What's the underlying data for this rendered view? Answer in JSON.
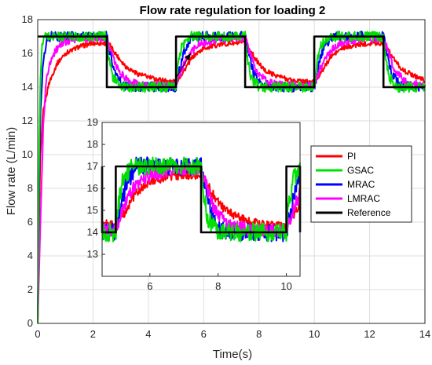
{
  "chart_data": {
    "type": "line",
    "title": "Flow rate regulation for loading 2",
    "xlabel": "Time(s)",
    "ylabel": "Flow rate (L/min)",
    "xlim": [
      0,
      14
    ],
    "ylim": [
      0,
      18
    ],
    "xticks": [
      "0",
      "2",
      "4",
      "6",
      "8",
      "10",
      "12",
      "14"
    ],
    "yticks": [
      "0",
      "2",
      "4",
      "6",
      "8",
      "10",
      "12",
      "14",
      "16",
      "18"
    ],
    "grid": true,
    "legend_position": "right, inside inset region",
    "series": [
      {
        "name": "PI",
        "color": "#ff0000",
        "x": [
          0,
          0.05,
          0.1,
          0.2,
          0.4,
          0.7,
          1.0,
          1.5,
          2.0,
          2.5,
          2.6,
          2.9,
          3.2,
          3.6,
          4.2,
          5.0,
          5.3,
          5.6,
          6.0,
          6.5,
          7.0,
          7.5,
          7.6,
          7.9,
          8.2,
          8.6,
          9.2,
          10.0,
          10.3,
          10.6,
          11.0,
          11.5,
          12.0,
          12.5,
          12.6,
          12.9,
          13.2,
          13.6,
          14.0
        ],
        "y": [
          0,
          6,
          10,
          12.6,
          14.2,
          15.4,
          16.0,
          16.4,
          16.6,
          16.6,
          16.5,
          15.8,
          15.2,
          14.8,
          14.5,
          14.3,
          15.0,
          15.8,
          16.3,
          16.5,
          16.6,
          16.6,
          16.4,
          15.6,
          15.0,
          14.7,
          14.4,
          14.3,
          15.0,
          15.8,
          16.3,
          16.5,
          16.6,
          16.6,
          16.4,
          15.6,
          15.0,
          14.7,
          14.4
        ]
      },
      {
        "name": "GSAC",
        "color": "#00e000",
        "x": [
          0,
          0.05,
          0.1,
          0.15,
          0.2,
          0.3,
          0.5,
          1.0,
          2.0,
          2.5,
          2.55,
          2.7,
          3.0,
          4.0,
          5.0,
          5.05,
          5.2,
          5.5,
          6.5,
          7.5,
          7.55,
          7.7,
          8.0,
          9.0,
          10.0,
          10.05,
          10.2,
          10.5,
          11.5,
          12.5,
          12.55,
          12.7,
          13.0,
          14.0
        ],
        "y": [
          0,
          10,
          14.5,
          16.2,
          16.8,
          17.0,
          17.0,
          17.0,
          17.0,
          17.0,
          16.0,
          14.6,
          14.0,
          14.0,
          14.0,
          15.0,
          16.4,
          17.0,
          17.0,
          17.0,
          16.0,
          14.6,
          14.0,
          14.0,
          14.0,
          15.0,
          16.4,
          17.0,
          17.0,
          17.0,
          16.0,
          14.6,
          14.0,
          14.0
        ]
      },
      {
        "name": "MRAC",
        "color": "#0000ff",
        "x": [
          0,
          0.05,
          0.1,
          0.2,
          0.3,
          0.5,
          1.0,
          2.0,
          2.5,
          2.6,
          2.8,
          3.1,
          4.0,
          5.0,
          5.1,
          5.3,
          5.6,
          6.5,
          7.5,
          7.6,
          7.8,
          8.1,
          9.0,
          10.0,
          10.1,
          10.3,
          10.6,
          11.5,
          12.5,
          12.6,
          12.8,
          13.1,
          14.0
        ],
        "y": [
          0,
          8,
          12.5,
          15.5,
          16.6,
          17.0,
          17.0,
          17.0,
          17.0,
          16.2,
          14.8,
          14.1,
          14.0,
          14.0,
          14.8,
          16.2,
          17.0,
          17.0,
          17.0,
          16.2,
          14.8,
          14.1,
          14.0,
          14.0,
          14.8,
          16.2,
          17.0,
          17.0,
          17.0,
          16.2,
          14.8,
          14.1,
          14.0
        ]
      },
      {
        "name": "LMRAC",
        "color": "#ff00ff",
        "x": [
          0,
          0.1,
          0.2,
          0.3,
          0.5,
          0.8,
          1.2,
          2.0,
          2.5,
          2.6,
          2.9,
          3.3,
          4.0,
          5.0,
          5.1,
          5.4,
          5.8,
          6.5,
          7.5,
          7.6,
          7.9,
          8.3,
          9.0,
          10.0,
          10.1,
          10.4,
          10.8,
          11.5,
          12.5,
          12.6,
          12.9,
          13.3,
          14.0
        ],
        "y": [
          0,
          6,
          11.5,
          14.3,
          15.8,
          16.5,
          16.8,
          16.9,
          16.9,
          16.4,
          15.0,
          14.3,
          14.1,
          14.1,
          14.6,
          15.8,
          16.5,
          16.8,
          16.9,
          16.4,
          15.0,
          14.3,
          14.1,
          14.1,
          14.6,
          15.8,
          16.5,
          16.8,
          16.9,
          16.4,
          15.0,
          14.3,
          14.1
        ]
      },
      {
        "name": "Reference",
        "color": "#000000",
        "x": [
          0,
          2.5,
          2.5,
          5.0,
          5.0,
          7.5,
          7.5,
          10.0,
          10.0,
          12.5,
          12.5,
          14.0
        ],
        "y": [
          17,
          17,
          14,
          14,
          17,
          17,
          14,
          14,
          17,
          17,
          14,
          14
        ]
      }
    ],
    "inset": {
      "xlim": [
        4.6,
        10.4
      ],
      "ylim": [
        12,
        19
      ],
      "xticks": [
        "6",
        "8",
        "10"
      ],
      "yticks": [
        "13",
        "14",
        "15",
        "16",
        "17",
        "18",
        "19"
      ],
      "grid": false
    }
  }
}
